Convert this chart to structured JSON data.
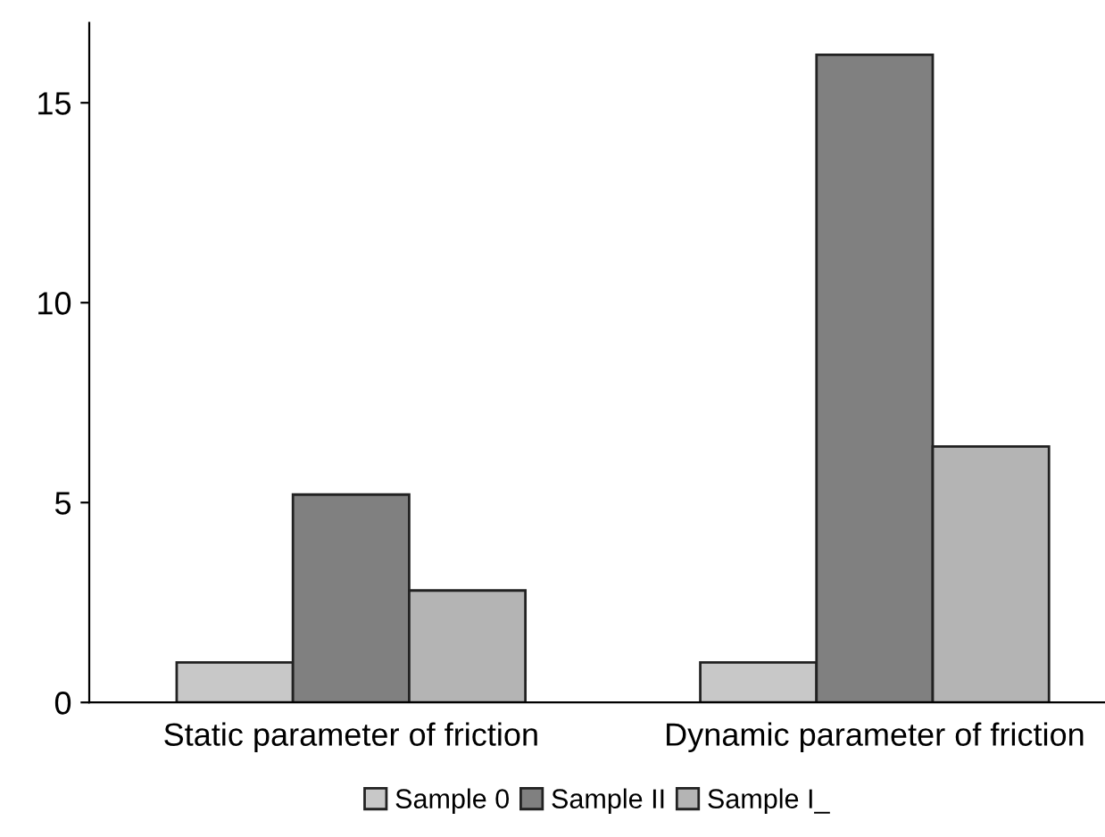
{
  "chart_data": {
    "type": "bar",
    "categories": [
      "Static parameter of friction",
      "Dynamic parameter of friction"
    ],
    "series": [
      {
        "name": "Sample 0",
        "color": "#c8c8c8",
        "values": [
          1.0,
          1.0
        ]
      },
      {
        "name": "Sample II",
        "color": "#808080",
        "values": [
          5.2,
          16.2
        ]
      },
      {
        "name": "Sample I_",
        "color": "#b4b4b4",
        "values": [
          2.8,
          6.4
        ]
      }
    ],
    "ylim": [
      0,
      17
    ],
    "yticks": [
      0,
      5,
      10,
      15
    ],
    "grid": false,
    "legend": "bottom"
  }
}
